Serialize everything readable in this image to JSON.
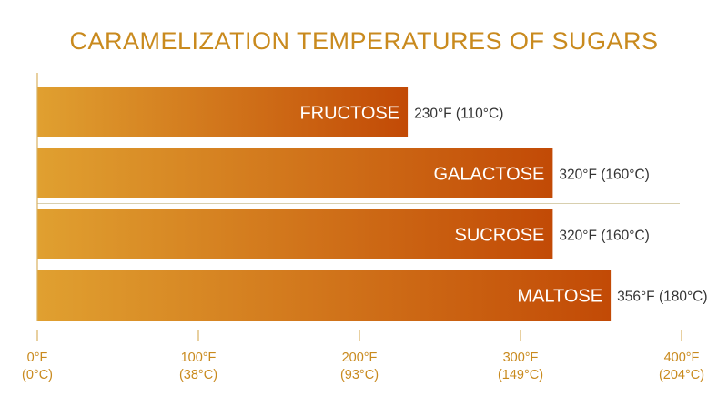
{
  "chart_data": {
    "type": "bar",
    "orientation": "horizontal",
    "title": "CARAMELIZATION TEMPERATURES OF SUGARS",
    "categories": [
      "FRUCTOSE",
      "GALACTOSE",
      "SUCROSE",
      "MALTOSE"
    ],
    "values": [
      230,
      320,
      320,
      356
    ],
    "value_labels": [
      "230°F (110°C)",
      "320°F (160°C)",
      "320°F (160°C)",
      "356°F (180°C)"
    ],
    "xlim": [
      0,
      400
    ],
    "ticks": [
      {
        "value": 0,
        "line1": "0°F",
        "line2": "(0°C)"
      },
      {
        "value": 100,
        "line1": "100°F",
        "line2": "(38°C)"
      },
      {
        "value": 200,
        "line1": "200°F",
        "line2": "(93°C)"
      },
      {
        "value": 300,
        "line1": "300°F",
        "line2": "(149°C)"
      },
      {
        "value": 400,
        "line1": "400°F",
        "line2": "(204°C)"
      }
    ],
    "grid": false,
    "colors": {
      "bar_start": "#E0A030",
      "bar_end": "#C24A06",
      "title": "#C98A1E",
      "ticks": "#C98A1E",
      "axis": "#D8B060",
      "separator": "#D8CFAE"
    }
  }
}
